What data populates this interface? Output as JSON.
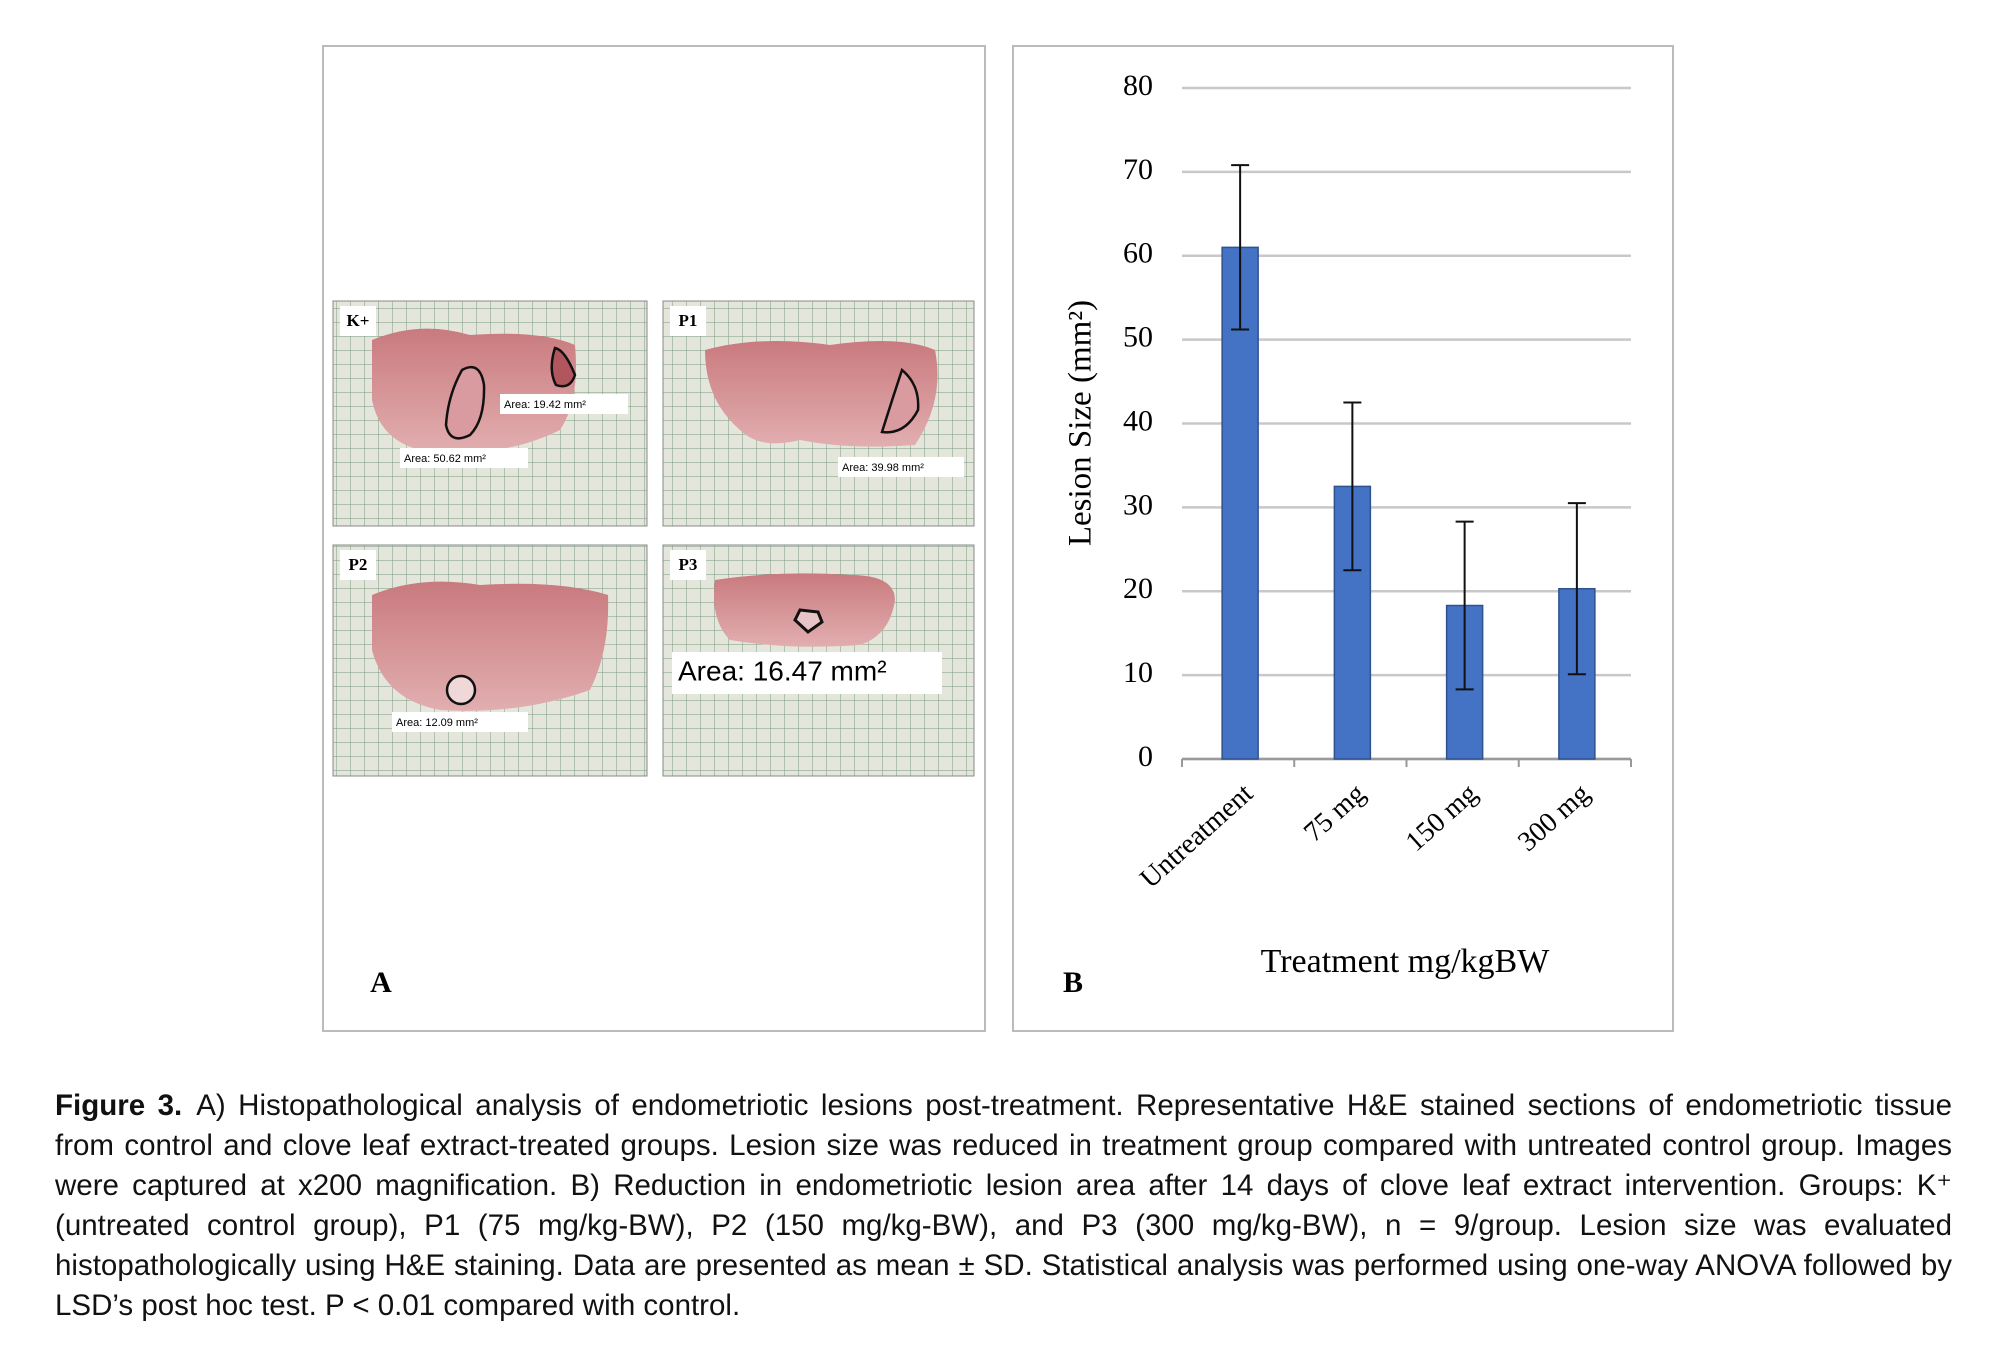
{
  "panel_a": {
    "label": "A",
    "images": [
      {
        "label": "K+",
        "areas": [
          "Area: 19.42 mm²",
          "Area: 50.62 mm²"
        ]
      },
      {
        "label": "P1",
        "areas": [
          "Area: 39.98 mm²"
        ]
      },
      {
        "label": "P2",
        "areas": [
          "Area: 12.09 mm²"
        ]
      },
      {
        "label": "P3",
        "areas": [
          "Area: 16.47 mm²"
        ]
      }
    ]
  },
  "panel_b": {
    "label": "B"
  },
  "chart_data": {
    "type": "bar",
    "y_label": "Lesion Size (mm²)",
    "x_label": "Treatment mg/kgBW",
    "categories": [
      "Untreatment",
      "75 mg",
      "150 mg",
      "300 mg"
    ],
    "values": [
      61,
      32.5,
      18.3,
      20.3
    ],
    "errors": [
      9.8,
      10,
      10,
      10.2
    ],
    "color": "#4472c4",
    "ylim": [
      0,
      80
    ],
    "yticks": [
      0,
      10,
      20,
      30,
      40,
      50,
      60,
      70,
      80
    ],
    "grid": true
  },
  "caption": {
    "label": "Figure 3.",
    "text": "A) Histopathological analysis of endometriotic lesions post-treatment. Representative H&E stained sections of endometriotic tissue from control and clove leaf extract-treated groups. Lesion size was reduced in treatment group compared with untreated control group. Images were captured at x200 magnification. B) Reduction in endometriotic lesion area after 14 days of clove leaf extract intervention. Groups: K⁺ (untreated control group), P1 (75 mg/kg-BW), P2 (150 mg/kg-BW), and P3 (300 mg/kg-BW), n = 9/group. Lesion size was evaluated histopathologically using H&E staining. Data are presented as mean ± SD. Statistical analysis was performed using one-way ANOVA followed by LSD’s post hoc test. P < 0.01 compared with control."
  }
}
